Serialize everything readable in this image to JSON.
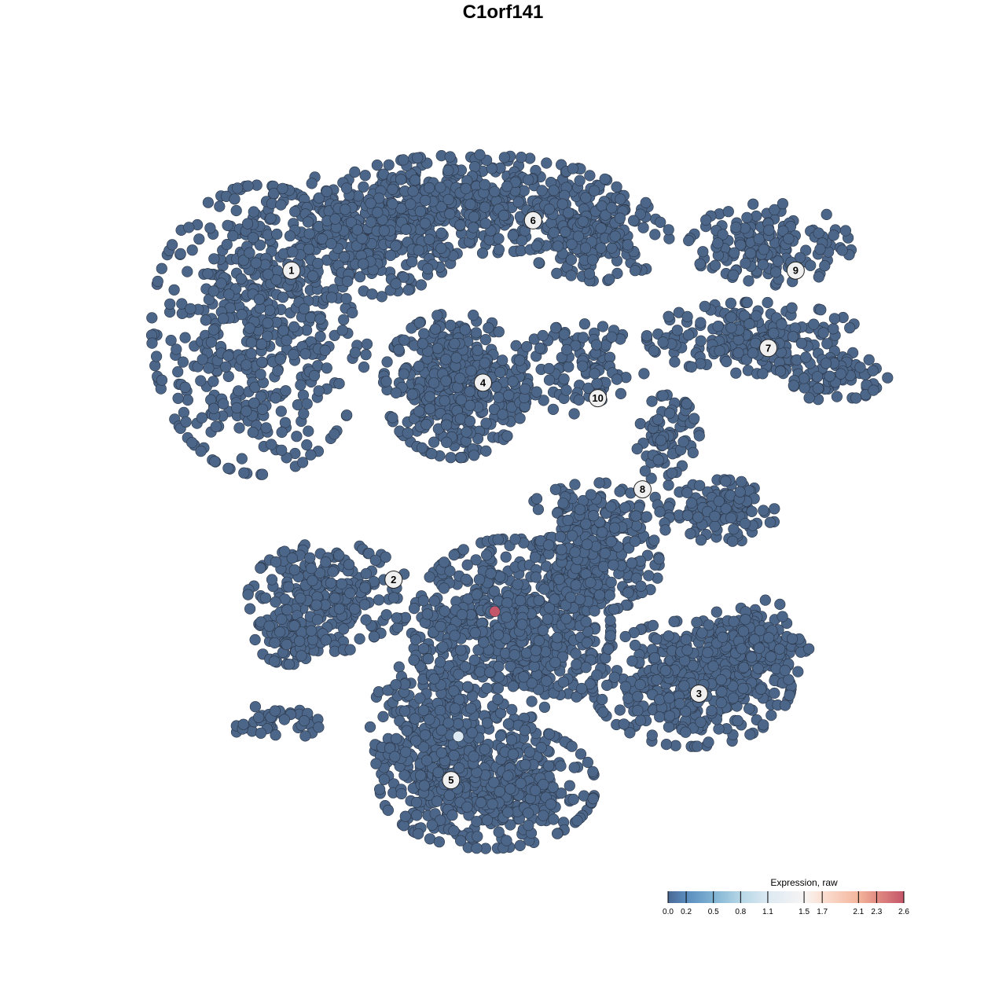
{
  "chart_data": {
    "type": "scatter",
    "title": "C1orf141",
    "xlabel": "",
    "ylabel": "",
    "grid": false,
    "axes_visible": false,
    "point_color_default": "#4c6689",
    "point_stroke": "#2b3647",
    "clusters": [
      {
        "label": "1",
        "label_pos": [
          -23.2,
          25.5
        ],
        "blobs": [
          {
            "center": [
              -26.7,
              19.0
            ],
            "spread": [
              10.3,
              13.8
            ],
            "n": 520
          },
          {
            "center": [
              -16.4,
              29.3
            ],
            "spread": [
              10.3,
              6.0
            ],
            "n": 320
          }
        ]
      },
      {
        "label": "2",
        "label_pos": [
          -12.0,
          -8.4
        ],
        "blobs": [
          {
            "center": [
              -19.0,
              -10.3
            ],
            "spread": [
              7.8,
              5.2
            ],
            "n": 250
          },
          {
            "center": [
              -23.3,
              -14.7
            ],
            "spread": [
              3.4,
              2.6
            ],
            "n": 80
          },
          {
            "center": [
              -25.0,
              -24.1
            ],
            "spread": [
              4.3,
              1.7
            ],
            "n": 40
          }
        ]
      },
      {
        "label": "3",
        "label_pos": [
          21.5,
          -20.9
        ],
        "blobs": [
          {
            "center": [
              20.7,
              -19.8
            ],
            "spread": [
              9.5,
              6.0
            ],
            "n": 420
          },
          {
            "center": [
              27.6,
              -15.5
            ],
            "spread": [
              5.2,
              4.3
            ],
            "n": 160
          }
        ]
      },
      {
        "label": "4",
        "label_pos": [
          -2.2,
          13.2
        ],
        "blobs": [
          {
            "center": [
              -5.2,
              12.9
            ],
            "spread": [
              6.9,
              6.9
            ],
            "n": 420
          }
        ]
      },
      {
        "label": "5",
        "label_pos": [
          -5.7,
          -30.4
        ],
        "blobs": [
          {
            "center": [
              0.9,
              -13.8
            ],
            "spread": [
              9.5,
              8.6
            ],
            "n": 620
          },
          {
            "center": [
              -1.7,
              -31.0
            ],
            "spread": [
              10.3,
              6.0
            ],
            "n": 520
          },
          {
            "center": [
              -8.6,
              -25.0
            ],
            "spread": [
              5.2,
              6.9
            ],
            "n": 200
          },
          {
            "center": [
              10.3,
              -6.9
            ],
            "spread": [
              6.0,
              4.3
            ],
            "n": 200
          }
        ]
      },
      {
        "label": "6",
        "label_pos": [
          3.3,
          31.0
        ],
        "blobs": [
          {
            "center": [
              -3.4,
              32.8
            ],
            "spread": [
              14.7,
              4.7
            ],
            "n": 460
          },
          {
            "center": [
              10.3,
              29.3
            ],
            "spread": [
              6.9,
              4.3
            ],
            "n": 160
          }
        ]
      },
      {
        "label": "7",
        "label_pos": [
          29.1,
          17.0
        ],
        "blobs": [
          {
            "center": [
              27.6,
              18.1
            ],
            "spread": [
              10.3,
              3.4
            ],
            "n": 210
          },
          {
            "center": [
              36.2,
              13.8
            ],
            "spread": [
              5.2,
              2.2
            ],
            "n": 80
          }
        ]
      },
      {
        "label": "8",
        "label_pos": [
          15.3,
          1.5
        ],
        "blobs": [
          {
            "center": [
              18.1,
              6.9
            ],
            "spread": [
              3.0,
              4.3
            ],
            "n": 80
          },
          {
            "center": [
              24.1,
              -0.9
            ],
            "spread": [
              5.2,
              3.0
            ],
            "n": 120
          },
          {
            "center": [
              10.3,
              -1.7
            ],
            "spread": [
              6.9,
              3.4
            ],
            "n": 120
          }
        ]
      },
      {
        "label": "9",
        "label_pos": [
          32.1,
          25.5
        ],
        "blobs": [
          {
            "center": [
              29.3,
              28.4
            ],
            "spread": [
              7.8,
              3.9
            ],
            "n": 160
          }
        ]
      },
      {
        "label": "10",
        "label_pos": [
          10.4,
          11.5
        ],
        "blobs": [
          {
            "center": [
              8.6,
              14.7
            ],
            "spread": [
              6.0,
              4.3
            ],
            "n": 100
          }
        ]
      }
    ],
    "highlighted_points": [
      {
        "x": -4.9,
        "y": -25.6,
        "value": 1.2
      },
      {
        "x": -0.9,
        "y": -11.9,
        "value": 2.6
      }
    ],
    "legend": {
      "title": "Expression, raw",
      "position": "bottom-right",
      "range": [
        0.0,
        2.6
      ],
      "ticks": [
        "0.0",
        "0.2",
        "0.5",
        "0.8",
        "1.1",
        "1.5",
        "1.7",
        "2.1",
        "2.3",
        "2.6"
      ],
      "stops": [
        {
          "value": 0.0,
          "color": "#4a6894"
        },
        {
          "value": 0.2,
          "color": "#5a8cbe"
        },
        {
          "value": 0.5,
          "color": "#80b3d3"
        },
        {
          "value": 0.8,
          "color": "#b6d6e6"
        },
        {
          "value": 1.1,
          "color": "#dce9f2"
        },
        {
          "value": 1.5,
          "color": "#f7f5f4"
        },
        {
          "value": 1.7,
          "color": "#fbe0d3"
        },
        {
          "value": 2.1,
          "color": "#f3b59c"
        },
        {
          "value": 2.3,
          "color": "#e28c82"
        },
        {
          "value": 2.6,
          "color": "#c4566a"
        }
      ]
    }
  }
}
